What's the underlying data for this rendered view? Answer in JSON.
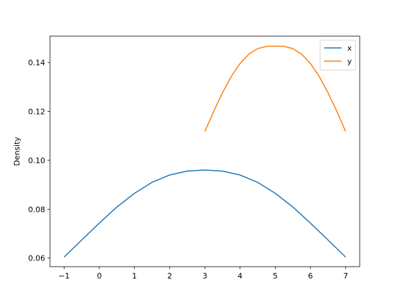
{
  "chart_data": {
    "type": "line",
    "title": "",
    "xlabel": "",
    "ylabel": "Density",
    "xlim": [
      -1.4,
      7.4
    ],
    "ylim": [
      0.0565,
      0.1508
    ],
    "xticks": [
      -1,
      0,
      1,
      2,
      3,
      4,
      5,
      6,
      7
    ],
    "xtick_labels": [
      "−1",
      "0",
      "1",
      "2",
      "3",
      "4",
      "5",
      "6",
      "7"
    ],
    "yticks": [
      0.06,
      0.08,
      0.1,
      0.12,
      0.14
    ],
    "ytick_labels": [
      "0.06",
      "0.08",
      "0.10",
      "0.12",
      "0.14"
    ],
    "grid": false,
    "legend_position": "top-right",
    "series": [
      {
        "name": "x",
        "color": "#1f77b4",
        "x": [
          -1,
          -0.5,
          0,
          0.5,
          1,
          1.5,
          2,
          2.5,
          3,
          3.5,
          4,
          4.5,
          5,
          5.5,
          6,
          6.5,
          7
        ],
        "y": [
          0.0604,
          0.0674,
          0.0743,
          0.0809,
          0.0865,
          0.091,
          0.094,
          0.0956,
          0.096,
          0.0956,
          0.094,
          0.091,
          0.0865,
          0.0809,
          0.0743,
          0.0674,
          0.0604
        ]
      },
      {
        "name": "y",
        "color": "#ff7f0e",
        "x": [
          3,
          3.25,
          3.5,
          3.75,
          4,
          4.25,
          4.5,
          4.75,
          5,
          5.25,
          5.5,
          5.75,
          6,
          6.25,
          6.5,
          6.75,
          7
        ],
        "y": [
          0.1118,
          0.12,
          0.1276,
          0.1343,
          0.1396,
          0.1434,
          0.1457,
          0.1466,
          0.1467,
          0.1466,
          0.1457,
          0.1434,
          0.1396,
          0.1343,
          0.1276,
          0.12,
          0.1118
        ]
      }
    ]
  }
}
